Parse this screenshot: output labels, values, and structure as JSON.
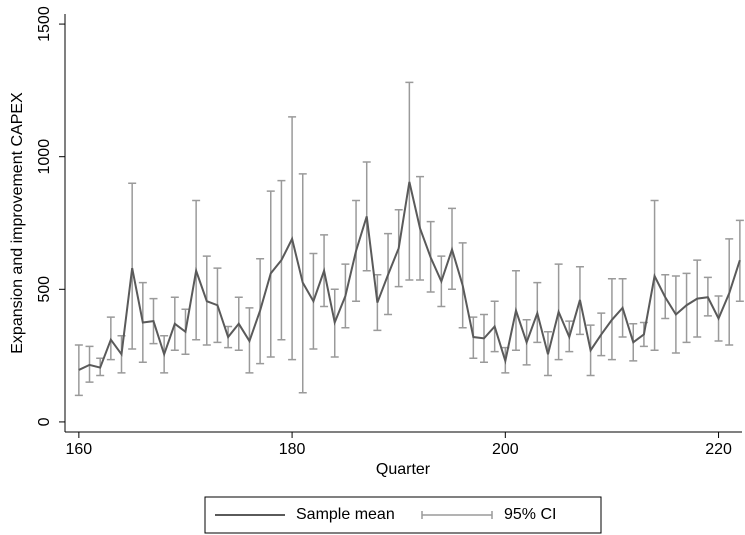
{
  "chart_data": {
    "type": "line-errorbar",
    "y_label": "Expansion and improvement CAPEX",
    "x_label": "Quarter",
    "x": [
      160,
      161,
      162,
      163,
      164,
      165,
      166,
      167,
      168,
      169,
      170,
      171,
      172,
      173,
      174,
      175,
      176,
      177,
      178,
      179,
      180,
      181,
      182,
      183,
      184,
      185,
      186,
      187,
      188,
      189,
      190,
      191,
      192,
      193,
      194,
      195,
      196,
      197,
      198,
      199,
      200,
      201,
      202,
      203,
      204,
      205,
      206,
      207,
      208,
      209,
      210,
      211,
      212,
      213,
      214,
      215,
      216,
      217,
      218,
      219,
      220,
      221,
      222
    ],
    "series": [
      {
        "name": "Sample mean",
        "color": "#5a5a5a",
        "values": [
          196,
          215,
          205,
          310,
          255,
          580,
          375,
          380,
          255,
          370,
          340,
          570,
          455,
          440,
          320,
          370,
          305,
          420,
          560,
          610,
          690,
          525,
          455,
          570,
          375,
          475,
          645,
          775,
          450,
          555,
          655,
          905,
          730,
          620,
          530,
          650,
          515,
          320,
          315,
          360,
          230,
          420,
          300,
          410,
          255,
          415,
          320,
          460,
          270,
          330,
          385,
          430,
          300,
          330,
          550,
          470,
          405,
          440,
          465,
          470,
          390,
          485,
          610
        ]
      },
      {
        "name": "95% CI",
        "color": "#9a9a9a",
        "lower": [
          100,
          150,
          175,
          235,
          185,
          275,
          225,
          295,
          185,
          270,
          255,
          310,
          290,
          300,
          280,
          270,
          185,
          220,
          245,
          310,
          235,
          110,
          275,
          435,
          245,
          355,
          455,
          570,
          345,
          405,
          510,
          535,
          535,
          490,
          435,
          500,
          355,
          240,
          225,
          265,
          185,
          270,
          215,
          300,
          175,
          235,
          265,
          330,
          175,
          250,
          235,
          320,
          230,
          285,
          270,
          390,
          260,
          300,
          320,
          400,
          305,
          290,
          455
        ],
        "upper": [
          290,
          285,
          240,
          395,
          325,
          900,
          525,
          465,
          325,
          470,
          425,
          835,
          625,
          580,
          360,
          470,
          430,
          615,
          870,
          910,
          1150,
          935,
          635,
          705,
          500,
          595,
          835,
          980,
          555,
          710,
          800,
          1280,
          925,
          755,
          625,
          805,
          675,
          395,
          405,
          455,
          280,
          570,
          385,
          525,
          340,
          595,
          380,
          585,
          365,
          410,
          540,
          540,
          370,
          375,
          835,
          555,
          550,
          560,
          610,
          545,
          475,
          690,
          760
        ]
      }
    ],
    "xlim": [
      158.7,
      222.2
    ],
    "xticks": [
      160,
      180,
      200,
      220
    ],
    "ylim": [
      -38,
      1538
    ],
    "yticks": [
      0,
      500,
      1000,
      1500
    ],
    "legend": "bottom"
  }
}
